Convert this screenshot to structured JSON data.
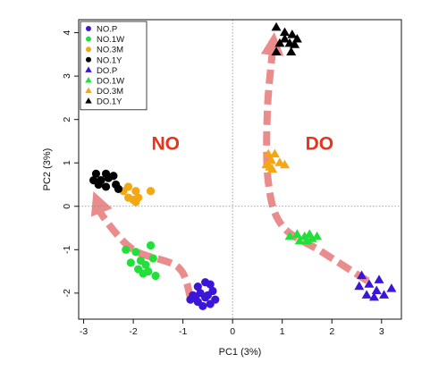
{
  "chart_data": {
    "type": "scatter",
    "title": "",
    "xlabel": "PC1 (3%)",
    "ylabel": "PC2 (3%)",
    "xlim": [
      -3.1,
      3.4
    ],
    "ylim": [
      -2.6,
      4.3
    ],
    "xticks": [
      -3,
      -2,
      -1,
      0,
      1,
      2,
      3
    ],
    "yticks": [
      -2,
      -1,
      0,
      1,
      2,
      3,
      4
    ],
    "xtick_labels": [
      "-3",
      "-2",
      "-1",
      "0",
      "1",
      "2",
      "3"
    ],
    "ytick_labels": [
      "-2",
      "-1",
      "0",
      "1",
      "2",
      "3",
      "4"
    ],
    "reference_lines": {
      "x": 0,
      "y": 0,
      "style": "dotted"
    },
    "legend_position": "top-left",
    "grid": false,
    "group_labels": [
      {
        "text": "NO",
        "x": -1.35,
        "y": 1.3,
        "color": "#e8331f"
      },
      {
        "text": "DO",
        "x": 1.75,
        "y": 1.3,
        "color": "#e8331f"
      }
    ],
    "trajectory_color": "#e88080",
    "trajectories": [
      [
        [
          -0.85,
          -2.1
        ],
        [
          -1.1,
          -1.4
        ],
        [
          -2.0,
          -1.0
        ],
        [
          -2.6,
          -0.25
        ],
        [
          -2.72,
          0.1
        ]
      ],
      [
        [
          2.72,
          -1.72
        ],
        [
          1.8,
          -1.05
        ],
        [
          1.0,
          -0.45
        ],
        [
          0.72,
          0.55
        ],
        [
          0.7,
          2.2
        ],
        [
          0.82,
          3.75
        ]
      ]
    ],
    "series": [
      {
        "name": "NO.P",
        "marker": "circle",
        "color": "#3b16d8",
        "points": [
          [
            -0.7,
            -1.85
          ],
          [
            -0.55,
            -1.75
          ],
          [
            -0.45,
            -1.8
          ],
          [
            -0.8,
            -2.05
          ],
          [
            -0.65,
            -2.0
          ],
          [
            -0.5,
            -2.05
          ],
          [
            -0.4,
            -1.95
          ],
          [
            -0.85,
            -2.15
          ],
          [
            -0.7,
            -2.2
          ],
          [
            -0.55,
            -2.1
          ],
          [
            -0.45,
            -2.25
          ],
          [
            -0.6,
            -2.3
          ],
          [
            -0.35,
            -2.15
          ],
          [
            -0.75,
            -2.1
          ]
        ]
      },
      {
        "name": "NO.1W",
        "marker": "circle",
        "color": "#22e03a",
        "points": [
          [
            -2.15,
            -1.0
          ],
          [
            -1.95,
            -1.05
          ],
          [
            -1.65,
            -0.9
          ],
          [
            -2.05,
            -1.3
          ],
          [
            -1.85,
            -1.25
          ],
          [
            -1.75,
            -1.35
          ],
          [
            -1.6,
            -1.2
          ],
          [
            -1.9,
            -1.45
          ],
          [
            -1.7,
            -1.5
          ],
          [
            -1.8,
            -1.55
          ],
          [
            -1.55,
            -1.6
          ]
        ]
      },
      {
        "name": "NO.3M",
        "marker": "circle",
        "color": "#f5a712",
        "points": [
          [
            -2.1,
            0.45
          ],
          [
            -2.2,
            0.35
          ],
          [
            -1.95,
            0.35
          ],
          [
            -1.65,
            0.35
          ],
          [
            -2.1,
            0.2
          ],
          [
            -1.9,
            0.2
          ],
          [
            -2.0,
            0.15
          ],
          [
            -1.95,
            0.1
          ]
        ]
      },
      {
        "name": "NO.1Y",
        "marker": "circle",
        "color": "#000000",
        "points": [
          [
            -2.75,
            0.75
          ],
          [
            -2.55,
            0.75
          ],
          [
            -2.4,
            0.7
          ],
          [
            -2.8,
            0.6
          ],
          [
            -2.65,
            0.6
          ],
          [
            -2.5,
            0.65
          ],
          [
            -2.7,
            0.5
          ],
          [
            -2.35,
            0.5
          ],
          [
            -2.55,
            0.45
          ],
          [
            -2.3,
            0.4
          ]
        ]
      },
      {
        "name": "DO.P",
        "marker": "triangle",
        "color": "#3b16d8",
        "points": [
          [
            2.6,
            -1.6
          ],
          [
            2.55,
            -1.85
          ],
          [
            2.75,
            -1.8
          ],
          [
            2.9,
            -1.95
          ],
          [
            2.7,
            -2.05
          ],
          [
            2.85,
            -2.1
          ],
          [
            3.05,
            -2.05
          ],
          [
            3.2,
            -1.9
          ],
          [
            2.95,
            -1.7
          ]
        ]
      },
      {
        "name": "DO.1W",
        "marker": "triangle",
        "color": "#22e03a",
        "points": [
          [
            1.15,
            -0.7
          ],
          [
            1.3,
            -0.65
          ],
          [
            1.45,
            -0.7
          ],
          [
            1.55,
            -0.65
          ],
          [
            1.7,
            -0.7
          ],
          [
            1.35,
            -0.8
          ],
          [
            1.5,
            -0.8
          ],
          [
            1.6,
            -0.75
          ]
        ]
      },
      {
        "name": "DO.3M",
        "marker": "triangle",
        "color": "#f5a712",
        "points": [
          [
            0.72,
            1.2
          ],
          [
            0.85,
            1.2
          ],
          [
            0.78,
            1.05
          ],
          [
            0.95,
            1.0
          ],
          [
            0.68,
            0.95
          ],
          [
            1.05,
            0.95
          ],
          [
            0.75,
            0.9
          ],
          [
            0.8,
            0.85
          ]
        ]
      },
      {
        "name": "DO.1Y",
        "marker": "triangle",
        "color": "#000000",
        "points": [
          [
            0.88,
            4.12
          ],
          [
            1.05,
            4.0
          ],
          [
            1.2,
            3.95
          ],
          [
            1.05,
            3.85
          ],
          [
            1.3,
            3.85
          ],
          [
            0.95,
            3.75
          ],
          [
            1.15,
            3.75
          ],
          [
            1.25,
            3.72
          ],
          [
            0.88,
            3.55
          ],
          [
            1.18,
            3.55
          ]
        ]
      }
    ]
  }
}
